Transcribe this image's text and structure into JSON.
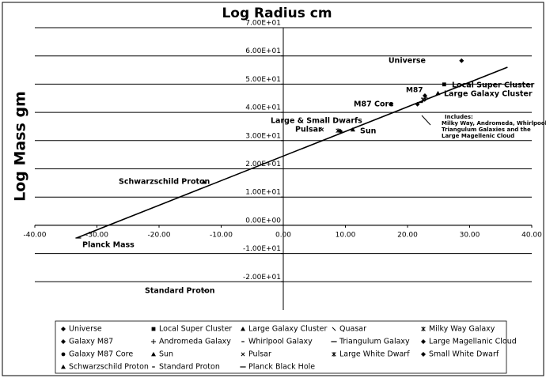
{
  "chart_data": {
    "type": "scatter",
    "title": "Log Radius cm",
    "y_label": "Log Mass gm",
    "xlim": [
      -40,
      40
    ],
    "ylim": [
      -30,
      70
    ],
    "xticks": [
      {
        "value": -40,
        "label": "-40.00"
      },
      {
        "value": -30,
        "label": "-30.00"
      },
      {
        "value": -20,
        "label": "-20.00"
      },
      {
        "value": -10,
        "label": "-10.00"
      },
      {
        "value": 0,
        "label": "0.00"
      },
      {
        "value": 10,
        "label": "10.00"
      },
      {
        "value": 20,
        "label": "20.00"
      },
      {
        "value": 30,
        "label": "30.00"
      },
      {
        "value": 40,
        "label": "40.00"
      }
    ],
    "yticks": [
      {
        "value": 70,
        "label": "7.00E+01"
      },
      {
        "value": 60,
        "label": "6.00E+01"
      },
      {
        "value": 50,
        "label": "5.00E+01"
      },
      {
        "value": 40,
        "label": "4.00E+01"
      },
      {
        "value": 30,
        "label": "3.00E+01"
      },
      {
        "value": 20,
        "label": "2.00E+01"
      },
      {
        "value": 10,
        "label": "1.00E+01"
      },
      {
        "value": 0,
        "label": "0.00E+00"
      },
      {
        "value": -10,
        "label": "-1.00E+01"
      },
      {
        "value": -20,
        "label": "-2.00E+01"
      }
    ],
    "grid": true,
    "color": "#000000",
    "series": [
      {
        "name": "Universe",
        "marker": "diamond",
        "x": [
          28.7
        ],
        "values": [
          58.3
        ]
      },
      {
        "name": "Local Super Cluster",
        "marker": "square",
        "x": [
          25.9
        ],
        "values": [
          49.9
        ]
      },
      {
        "name": "Large Galaxy Cluster",
        "marker": "triangle",
        "x": [
          24.9
        ],
        "values": [
          46.8
        ]
      },
      {
        "name": "Quasar",
        "marker": "backslash",
        "x": [
          23.0
        ],
        "values": [
          45.5
        ]
      },
      {
        "name": "Milky Way Galaxy",
        "marker": "star",
        "x": [
          22.5
        ],
        "values": [
          44.5
        ]
      },
      {
        "name": "Galaxy M87",
        "marker": "diamond",
        "x": [
          22.8
        ],
        "values": [
          45.9
        ]
      },
      {
        "name": "Andromeda Galaxy",
        "marker": "plus",
        "x": [
          22.9
        ],
        "values": [
          44.8
        ]
      },
      {
        "name": "Whirlpool Galaxy",
        "marker": "dash",
        "x": [
          22.3
        ],
        "values": [
          43.8
        ]
      },
      {
        "name": "Triangulum Galaxy",
        "marker": "longdash",
        "x": [
          22.0
        ],
        "values": [
          43.5
        ]
      },
      {
        "name": "Large Magellanic Cloud",
        "marker": "diamond",
        "x": [
          21.6
        ],
        "values": [
          42.9
        ]
      },
      {
        "name": "Galaxy M87 Core",
        "marker": "circle",
        "x": [
          17.3
        ],
        "values": [
          42.9
        ]
      },
      {
        "name": "Sun",
        "marker": "triangle",
        "x": [
          11.2
        ],
        "values": [
          33.9
        ]
      },
      {
        "name": "Pulsar",
        "marker": "cross",
        "x": [
          6.2
        ],
        "values": [
          33.9
        ]
      },
      {
        "name": "Large White Dwarf",
        "marker": "star",
        "x": [
          8.8
        ],
        "values": [
          33.5
        ]
      },
      {
        "name": "Small White Dwarf",
        "marker": "diamond",
        "x": [
          9.2
        ],
        "values": [
          33.3
        ]
      },
      {
        "name": "Schwarzschild Proton",
        "marker": "triangle",
        "x": [
          -12.8
        ],
        "values": [
          15.4
        ]
      },
      {
        "name": "Standard Proton",
        "marker": "dash",
        "x": [
          -12.6
        ],
        "values": [
          -23.2
        ]
      },
      {
        "name": "Planck Black Hole",
        "marker": "longdash",
        "x": [
          -33.0
        ],
        "values": [
          -4.5
        ]
      }
    ],
    "trendline": {
      "x": [
        -33.3,
        36.1
      ],
      "values": [
        -4.5,
        56.0
      ]
    },
    "annotations": [
      "Universe",
      "Local Super Cluster",
      "Large Galaxy Cluster",
      "M87",
      "M87 Core",
      "Large & Small Dwarfs",
      "Pulsar",
      "Sun",
      "Schwarzschild Proton",
      "Planck Mass",
      "Standard Proton",
      "Includes:",
      "Milky Way, Andromeda, Whirlpool &",
      "Triangulum Galaxies and the",
      "Large Magellenic Cloud"
    ]
  }
}
